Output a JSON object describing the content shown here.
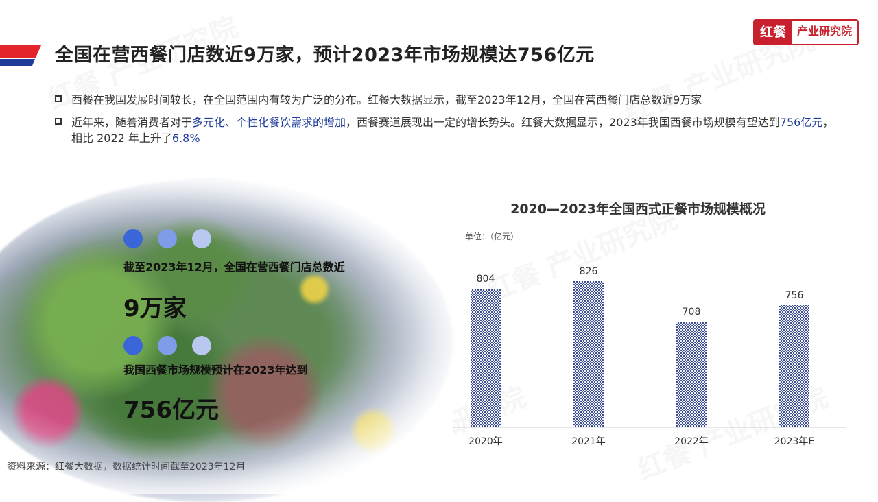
{
  "header": {
    "title": "全国在营西餐门店数近9万家，预计2023年市场规模达756亿元",
    "logo_mark": "红餐",
    "logo_text": "产业研究院"
  },
  "bullets": [
    {
      "text_before": "西餐在我国发展时间较长，在全国范围内有较为广泛的分布。红餐大数据显示，截至2023年12月，全国在营西餐门店总数近9万家",
      "highlight": "",
      "text_mid": "",
      "highlight2": "",
      "text_after": ""
    },
    {
      "text_before": "近年来，随着消费者对于",
      "highlight": "多元化、个性化餐饮需求的增加",
      "text_mid": "，西餐赛道展现出一定的增长势头。红餐大数据显示，2023年我国西餐市场规模有望达到",
      "highlight2": "756亿元",
      "text_after": "，相比 2022 年上升了",
      "highlight3": "6.8%"
    }
  ],
  "stats": [
    {
      "label": "截至2023年12月，全国在营西餐门店总数近",
      "value": "9万家"
    },
    {
      "label": "我国西餐市场规模预计在2023年达到",
      "value": "756亿元"
    }
  ],
  "colors": {
    "accent_red": "#c8202c",
    "accent_blue": "#1f3c9a",
    "bar": "#3d4f8f"
  },
  "chart_data": {
    "type": "bar",
    "title": "2020—2023年全国西式正餐市场规模概况",
    "unit": "单位：（亿元）",
    "categories": [
      "2020年",
      "2021年",
      "2022年",
      "2023年E"
    ],
    "values": [
      804,
      826,
      708,
      756
    ],
    "ylim": [
      0,
      900
    ]
  },
  "footer": {
    "source": "资料来源：红餐大数据，数据统计时间截至2023年12月"
  },
  "watermark": "红餐 产业研究院"
}
